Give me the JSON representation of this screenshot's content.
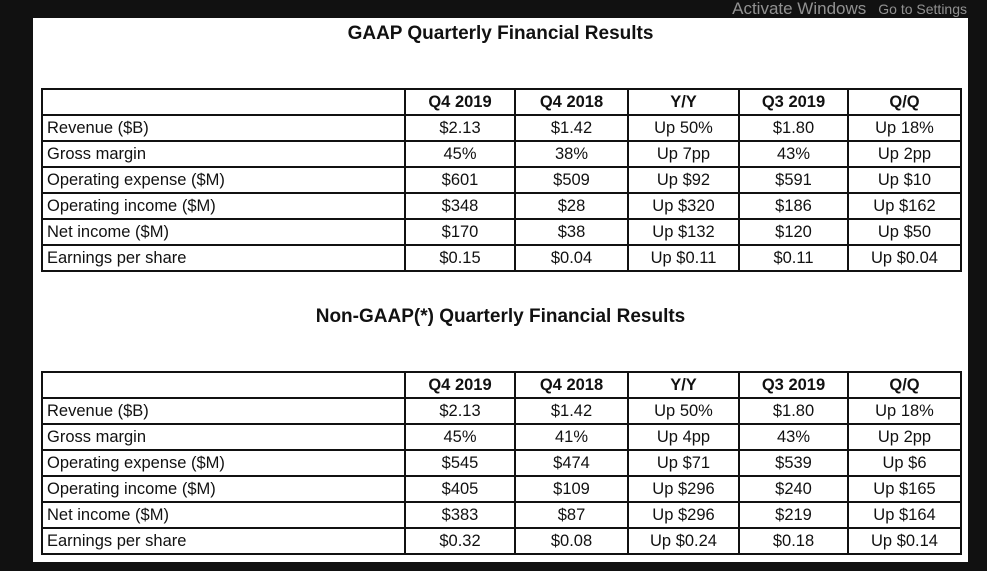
{
  "columns": [
    "",
    "Q4 2019",
    "Q4 2018",
    "Y/Y",
    "Q3 2019",
    "Q/Q"
  ],
  "tables": [
    {
      "title": "GAAP Quarterly Financial Results",
      "rows": [
        [
          "Revenue ($B)",
          "$2.13",
          "$1.42",
          "Up 50%",
          "$1.80",
          "Up 18%"
        ],
        [
          "Gross margin",
          "45%",
          "38%",
          "Up 7pp",
          "43%",
          "Up 2pp"
        ],
        [
          "Operating expense ($M)",
          "$601",
          "$509",
          "Up $92",
          "$591",
          "Up $10"
        ],
        [
          "Operating income ($M)",
          "$348",
          "$28",
          "Up $320",
          "$186",
          "Up $162"
        ],
        [
          "Net income ($M)",
          "$170",
          "$38",
          "Up $132",
          "$120",
          "Up $50"
        ],
        [
          "Earnings per share",
          "$0.15",
          "$0.04",
          "Up $0.11",
          "$0.11",
          "Up $0.04"
        ]
      ]
    },
    {
      "title": "Non-GAAP(*) Quarterly Financial Results",
      "rows": [
        [
          "Revenue ($B)",
          "$2.13",
          "$1.42",
          "Up 50%",
          "$1.80",
          "Up 18%"
        ],
        [
          "Gross margin",
          "45%",
          "41%",
          "Up 4pp",
          "43%",
          "Up 2pp"
        ],
        [
          "Operating expense ($M)",
          "$545",
          "$474",
          "Up $71",
          "$539",
          "Up $6"
        ],
        [
          "Operating income ($M)",
          "$405",
          "$109",
          "Up $296",
          "$240",
          "Up $165"
        ],
        [
          "Net income ($M)",
          "$383",
          "$87",
          "Up $296",
          "$219",
          "Up $164"
        ],
        [
          "Earnings per share",
          "$0.32",
          "$0.08",
          "Up $0.24",
          "$0.18",
          "Up $0.14"
        ]
      ]
    }
  ],
  "watermark": {
    "line1": "Activate Windows",
    "line2": "Go to Settings"
  }
}
